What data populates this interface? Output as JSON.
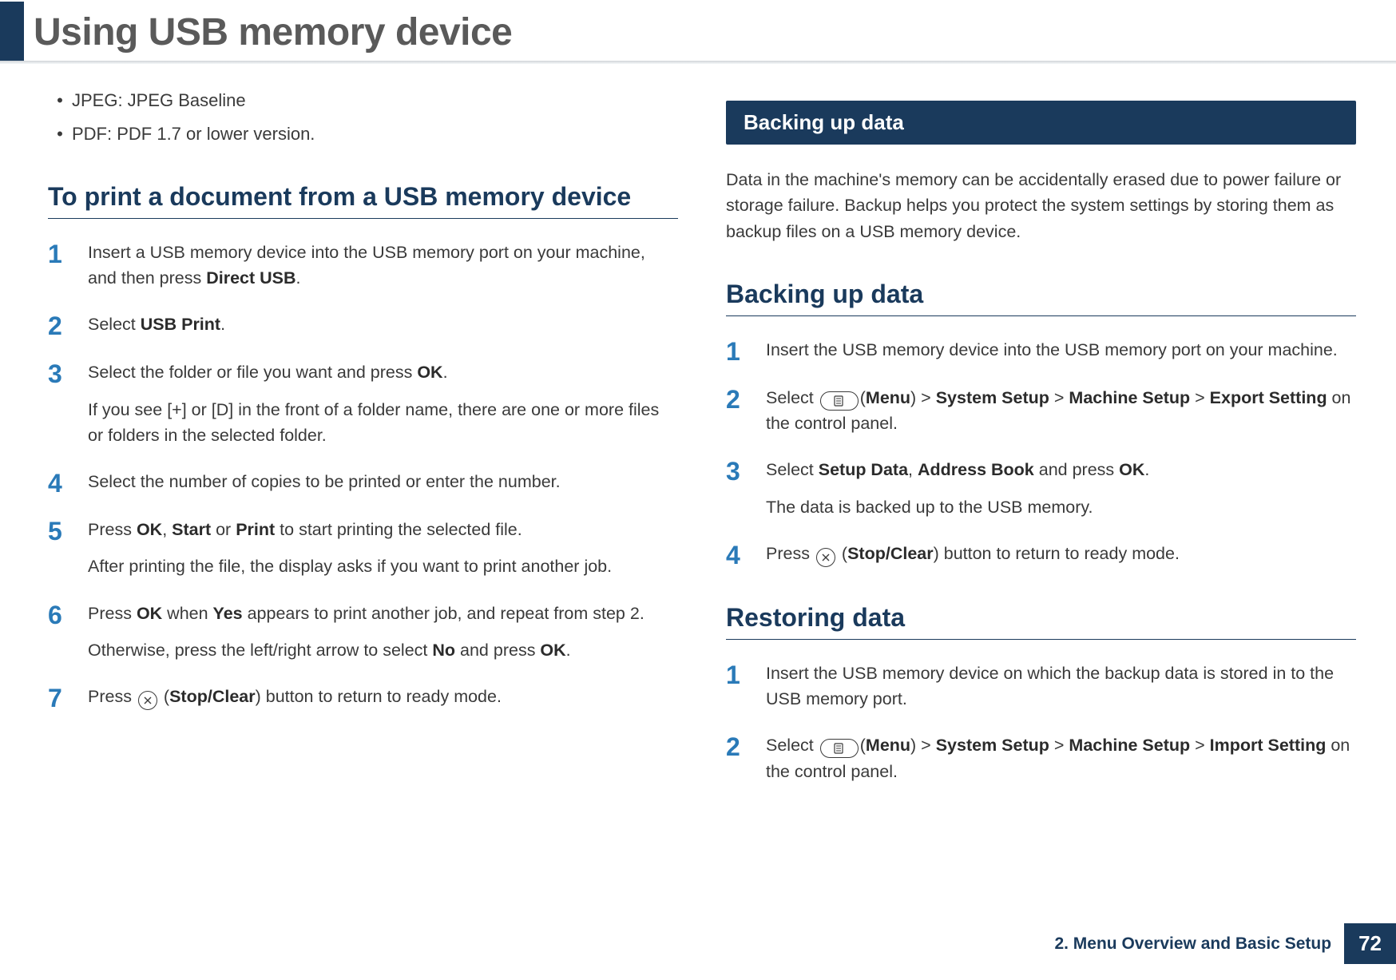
{
  "header": {
    "title": "Using USB memory device",
    "dark_color": "#1a3a5c",
    "title_color": "#5a5a5a"
  },
  "left_column": {
    "bullets": [
      "JPEG: JPEG Baseline",
      "PDF: PDF 1.7 or lower version."
    ],
    "subheading": "To print a document from a USB memory device",
    "steps": [
      {
        "num": "1",
        "paras": [
          [
            {
              "t": "Insert a USB memory device into the USB memory port on your machine, and then press "
            },
            {
              "t": "Direct USB",
              "b": true
            },
            {
              "t": "."
            }
          ]
        ]
      },
      {
        "num": "2",
        "paras": [
          [
            {
              "t": "Select "
            },
            {
              "t": "USB Print",
              "b": true
            },
            {
              "t": "."
            }
          ]
        ]
      },
      {
        "num": "3",
        "paras": [
          [
            {
              "t": "Select the folder or file you want and press "
            },
            {
              "t": "OK",
              "b": true
            },
            {
              "t": "."
            }
          ],
          [
            {
              "t": "If you see [+] or [D] in the front of a folder name, there are one or more files or folders in the selected folder."
            }
          ]
        ]
      },
      {
        "num": "4",
        "paras": [
          [
            {
              "t": "Select the number of copies to be printed or enter the number."
            }
          ]
        ]
      },
      {
        "num": "5",
        "paras": [
          [
            {
              "t": "Press "
            },
            {
              "t": "OK",
              "b": true
            },
            {
              "t": ", "
            },
            {
              "t": "Start",
              "b": true
            },
            {
              "t": " or "
            },
            {
              "t": "Print",
              "b": true
            },
            {
              "t": " to start printing the selected file."
            }
          ],
          [
            {
              "t": "After printing the file, the display asks if you want to print another job."
            }
          ]
        ]
      },
      {
        "num": "6",
        "paras": [
          [
            {
              "t": "Press "
            },
            {
              "t": "OK",
              "b": true
            },
            {
              "t": " when "
            },
            {
              "t": "Yes",
              "b": true
            },
            {
              "t": " appears to print another job, and repeat from step 2."
            }
          ],
          [
            {
              "t": "Otherwise, press the left/right arrow to select "
            },
            {
              "t": "No",
              "b": true
            },
            {
              "t": " and press "
            },
            {
              "t": "OK",
              "b": true
            },
            {
              "t": "."
            }
          ]
        ]
      },
      {
        "num": "7",
        "paras": [
          [
            {
              "t": "Press "
            },
            {
              "icon": "stop-circle"
            },
            {
              "t": " ("
            },
            {
              "t": "Stop/Clear",
              "b": true
            },
            {
              "t": ") button to return to ready mode."
            }
          ]
        ]
      }
    ]
  },
  "right_column": {
    "section_band": "Backing up data",
    "intro": "Data in the machine's memory can be accidentally erased due to power failure or storage failure. Backup helps you protect the system settings by storing them as backup files on a USB memory device.",
    "sections": [
      {
        "subheading": "Backing up data",
        "steps": [
          {
            "num": "1",
            "paras": [
              [
                {
                  "t": "Insert the USB memory device into the USB memory port on your machine."
                }
              ]
            ]
          },
          {
            "num": "2",
            "paras": [
              [
                {
                  "t": "Select "
                },
                {
                  "icon": "menu-pill"
                },
                {
                  "t": "("
                },
                {
                  "t": "Menu",
                  "b": true
                },
                {
                  "t": ") > "
                },
                {
                  "t": "System Setup",
                  "b": true
                },
                {
                  "t": " > "
                },
                {
                  "t": "Machine Setup",
                  "b": true
                },
                {
                  "t": " > "
                },
                {
                  "t": "Export Setting",
                  "b": true
                },
                {
                  "t": " on the control panel."
                }
              ]
            ]
          },
          {
            "num": "3",
            "paras": [
              [
                {
                  "t": "Select "
                },
                {
                  "t": "Setup Data",
                  "b": true
                },
                {
                  "t": ", "
                },
                {
                  "t": "Address Book",
                  "b": true
                },
                {
                  "t": " and press "
                },
                {
                  "t": "OK",
                  "b": true
                },
                {
                  "t": "."
                }
              ],
              [
                {
                  "t": "The data is backed up to the USB memory."
                }
              ]
            ]
          },
          {
            "num": "4",
            "paras": [
              [
                {
                  "t": "Press "
                },
                {
                  "icon": "stop-circle"
                },
                {
                  "t": " ("
                },
                {
                  "t": "Stop/Clear",
                  "b": true
                },
                {
                  "t": ") button to return to ready mode."
                }
              ]
            ]
          }
        ]
      },
      {
        "subheading": "Restoring data",
        "steps": [
          {
            "num": "1",
            "paras": [
              [
                {
                  "t": "Insert the USB memory device on which the backup data is stored in to the USB memory port."
                }
              ]
            ]
          },
          {
            "num": "2",
            "paras": [
              [
                {
                  "t": "Select "
                },
                {
                  "icon": "menu-pill"
                },
                {
                  "t": "("
                },
                {
                  "t": "Menu",
                  "b": true
                },
                {
                  "t": ") > "
                },
                {
                  "t": "System Setup",
                  "b": true
                },
                {
                  "t": " > "
                },
                {
                  "t": "Machine Setup",
                  "b": true
                },
                {
                  "t": " > "
                },
                {
                  "t": "Import Setting",
                  "b": true
                },
                {
                  "t": " on the control panel."
                }
              ]
            ]
          }
        ]
      }
    ]
  },
  "footer": {
    "chapter": "2. Menu Overview and Basic Setup",
    "page": "72"
  },
  "colors": {
    "primary": "#1a3a5c",
    "step_num": "#2a7ab8",
    "text": "#3a3a3a"
  }
}
